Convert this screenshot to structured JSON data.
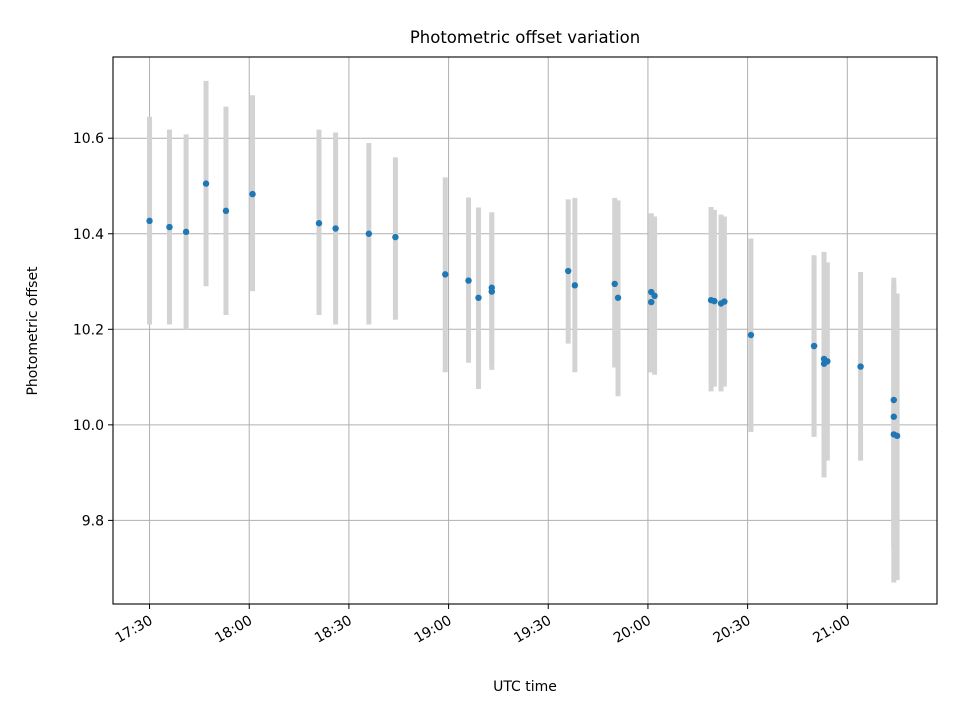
{
  "chart_data": {
    "type": "scatter",
    "title": "Photometric offset variation",
    "xlabel": "UTC time",
    "ylabel": "Photometric offset",
    "x_ticks": [
      "17:30",
      "18:00",
      "18:30",
      "19:00",
      "19:30",
      "20:00",
      "20:30",
      "21:00"
    ],
    "y_ticks": [
      "9.8",
      "10.0",
      "10.2",
      "10.4",
      "10.6"
    ],
    "xlim": [
      "17:19",
      "21:27"
    ],
    "ylim": [
      9.625,
      10.77
    ],
    "grid": true,
    "series": [
      {
        "marker_color": "#1f77b4",
        "errorbar_color": "#d3d3d3",
        "points": [
          {
            "x": "17:30",
            "y": 10.427,
            "ylo": 10.21,
            "yhi": 10.645
          },
          {
            "x": "17:36",
            "y": 10.414,
            "ylo": 10.21,
            "yhi": 10.618
          },
          {
            "x": "17:41",
            "y": 10.404,
            "ylo": 10.2,
            "yhi": 10.608
          },
          {
            "x": "17:47",
            "y": 10.505,
            "ylo": 10.29,
            "yhi": 10.72
          },
          {
            "x": "17:53",
            "y": 10.448,
            "ylo": 10.23,
            "yhi": 10.666
          },
          {
            "x": "18:01",
            "y": 10.483,
            "ylo": 10.28,
            "yhi": 10.69
          },
          {
            "x": "18:21",
            "y": 10.422,
            "ylo": 10.23,
            "yhi": 10.618
          },
          {
            "x": "18:26",
            "y": 10.411,
            "ylo": 10.21,
            "yhi": 10.612
          },
          {
            "x": "18:36",
            "y": 10.4,
            "ylo": 10.21,
            "yhi": 10.59
          },
          {
            "x": "18:44",
            "y": 10.393,
            "ylo": 10.22,
            "yhi": 10.56
          },
          {
            "x": "18:59",
            "y": 10.315,
            "ylo": 10.11,
            "yhi": 10.518
          },
          {
            "x": "19:06",
            "y": 10.302,
            "ylo": 10.13,
            "yhi": 10.476
          },
          {
            "x": "19:09",
            "y": 10.266,
            "ylo": 10.075,
            "yhi": 10.455
          },
          {
            "x": "19:13",
            "y": 10.287,
            "ylo": 10.13,
            "yhi": 10.44
          },
          {
            "x": "19:13",
            "y": 10.279,
            "ylo": 10.115,
            "yhi": 10.445
          },
          {
            "x": "19:36",
            "y": 10.322,
            "ylo": 10.17,
            "yhi": 10.472
          },
          {
            "x": "19:38",
            "y": 10.292,
            "ylo": 10.11,
            "yhi": 10.475
          },
          {
            "x": "19:50",
            "y": 10.295,
            "ylo": 10.12,
            "yhi": 10.475
          },
          {
            "x": "19:51",
            "y": 10.266,
            "ylo": 10.06,
            "yhi": 10.47
          },
          {
            "x": "20:01",
            "y": 10.278,
            "ylo": 10.11,
            "yhi": 10.443
          },
          {
            "x": "20:01",
            "y": 10.257,
            "ylo": 10.11,
            "yhi": 10.44
          },
          {
            "x": "20:02",
            "y": 10.27,
            "ylo": 10.105,
            "yhi": 10.436
          },
          {
            "x": "20:19",
            "y": 10.261,
            "ylo": 10.07,
            "yhi": 10.456
          },
          {
            "x": "20:20",
            "y": 10.259,
            "ylo": 10.08,
            "yhi": 10.45
          },
          {
            "x": "20:22",
            "y": 10.254,
            "ylo": 10.07,
            "yhi": 10.44
          },
          {
            "x": "20:23",
            "y": 10.258,
            "ylo": 10.08,
            "yhi": 10.436
          },
          {
            "x": "20:31",
            "y": 10.188,
            "ylo": 9.985,
            "yhi": 10.39
          },
          {
            "x": "20:50",
            "y": 10.165,
            "ylo": 9.975,
            "yhi": 10.355
          },
          {
            "x": "20:50",
            "y": 10.165,
            "ylo": 9.975,
            "yhi": 10.35
          },
          {
            "x": "20:53",
            "y": 10.128,
            "ylo": 9.89,
            "yhi": 10.362
          },
          {
            "x": "20:53",
            "y": 10.138,
            "ylo": 9.92,
            "yhi": 10.358
          },
          {
            "x": "20:54",
            "y": 10.133,
            "ylo": 9.925,
            "yhi": 10.34
          },
          {
            "x": "21:04",
            "y": 10.122,
            "ylo": 9.925,
            "yhi": 10.32
          },
          {
            "x": "21:14",
            "y": 10.052,
            "ylo": 9.745,
            "yhi": 10.308
          },
          {
            "x": "21:14",
            "y": 10.017,
            "ylo": 9.74,
            "yhi": 10.295
          },
          {
            "x": "21:14",
            "y": 9.98,
            "ylo": 9.67,
            "yhi": 10.29
          },
          {
            "x": "21:15",
            "y": 9.977,
            "ylo": 9.675,
            "yhi": 10.275
          }
        ]
      }
    ]
  }
}
